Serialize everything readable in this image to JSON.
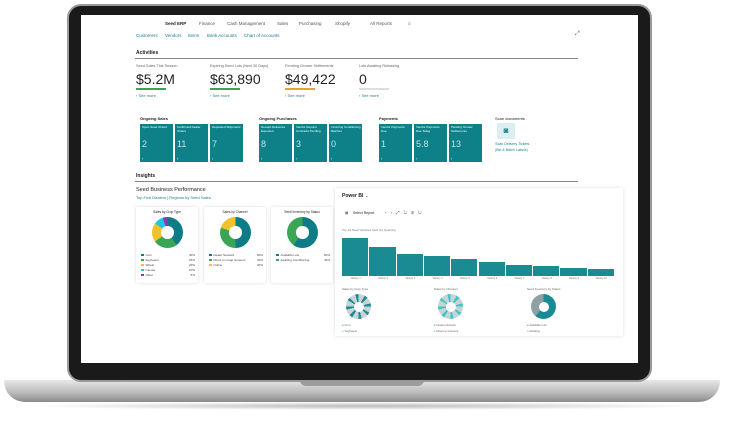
{
  "app": {
    "title": "Seed ERP",
    "menu": [
      "Finance",
      "Cash Management",
      "Sales",
      "Purchasing",
      "Shopify"
    ],
    "all_reports": "All Reports",
    "more_icon": "≡"
  },
  "links": [
    "Customers",
    "Vendors",
    "Items",
    "Bank Accounts",
    "Chart of Accounts"
  ],
  "activities": {
    "title": "Activities",
    "see_more": "See more",
    "kpis": [
      {
        "label": "Seed Sales This Season",
        "value": "$5.2M",
        "color": "#3aa655"
      },
      {
        "label": "Expiring Seed Lots (Next 30 Days)",
        "value": "$63,890",
        "color": "#3aa655"
      },
      {
        "label": "Pending Grower Settlements",
        "value": "$49,422",
        "color": "#e0a82e"
      },
      {
        "label": "Lots Awaiting Releasing",
        "value": "0",
        "color": "#dddddd"
      }
    ]
  },
  "tile_groups": [
    {
      "title": "Ongoing Sales",
      "tiles": [
        {
          "label": "Open Seed Orders",
          "value": "2"
        },
        {
          "label": "Confirmed Dealer Orders",
          "value": "11"
        },
        {
          "label": "Deposited Shipments",
          "value": "7"
        }
      ]
    },
    {
      "title": "Ongoing Purchases",
      "tiles": [
        {
          "label": "Receipt Deliveries Expected",
          "value": "8"
        },
        {
          "label": "Vendor Reports Contracts Pending",
          "value": "3"
        },
        {
          "label": "Incoming Conditioning Batches",
          "value": "0"
        }
      ]
    },
    {
      "title": "Payments",
      "tiles": [
        {
          "label": "Vendor Payments Due",
          "value": "1"
        },
        {
          "label": "Vendor Payments Due Today",
          "value": "5.8"
        },
        {
          "label": "Pending Grower Settlements",
          "value": "13"
        }
      ]
    }
  ],
  "scan": {
    "title": "Scan documents",
    "label1": "Scan Delivery Tickets",
    "label2": "(Bin & Batch Labels)"
  },
  "insights": {
    "title": "Insights",
    "perf_title": "Seed Business Performance",
    "perf_sub": "Top Five Dealers | Regions by Seed Sales"
  },
  "chart_data": [
    {
      "type": "pie",
      "title": "Sales by Crop Type",
      "categories": [
        "Corn",
        "Soybeans",
        "Wheat",
        "Canola",
        "Other"
      ],
      "values": [
        40,
        25,
        20,
        10,
        5
      ],
      "labels": [
        "40%",
        "25%",
        "20%",
        "10%",
        "5%"
      ],
      "colors": [
        "#0e7c86",
        "#3aa655",
        "#f2c12e",
        "#1ec8e0",
        "#8a3ab9"
      ]
    },
    {
      "type": "pie",
      "title": "Sales by Channel",
      "categories": [
        "Dealer Network",
        "Direct to Large Growers",
        "Online"
      ],
      "values": [
        50,
        30,
        20
      ],
      "labels": [
        "50%",
        "30%",
        "20%"
      ],
      "colors": [
        "#0e7c86",
        "#3aa655",
        "#f2c12e"
      ]
    },
    {
      "type": "pie",
      "title": "Seed Inventory by Status",
      "categories": [
        "Available Lots",
        "Awaiting Conditioning"
      ],
      "values": [
        60,
        40
      ],
      "labels": [
        "60%",
        "40%"
      ],
      "colors": [
        "#0e7c86",
        "#3aa655"
      ]
    },
    {
      "type": "bar",
      "title": "Top 10 Seed Varieties Sold (by Quantity)",
      "categories": [
        "Variety 1",
        "Variety 2",
        "Variety 3",
        "Variety 4",
        "Variety 5",
        "Variety 6",
        "Variety 7",
        "Variety 8",
        "Variety 9",
        "Variety 10"
      ],
      "values": [
        38,
        29,
        22,
        20,
        17,
        14,
        11,
        10,
        8,
        7
      ],
      "ylim": [
        0,
        40
      ]
    }
  ],
  "powerbi": {
    "title": "Power BI",
    "select_report": "Select Report",
    "mini": [
      {
        "title": "Sales by Crop Type",
        "legend": [
          "Corn",
          "Soybeans"
        ]
      },
      {
        "title": "Sales by Channel",
        "legend": [
          "Dealer Network",
          "Direct to Growers"
        ]
      },
      {
        "title": "Seed Inventory by Status",
        "legend": [
          "Available Lots",
          "Awaiting"
        ]
      }
    ]
  }
}
